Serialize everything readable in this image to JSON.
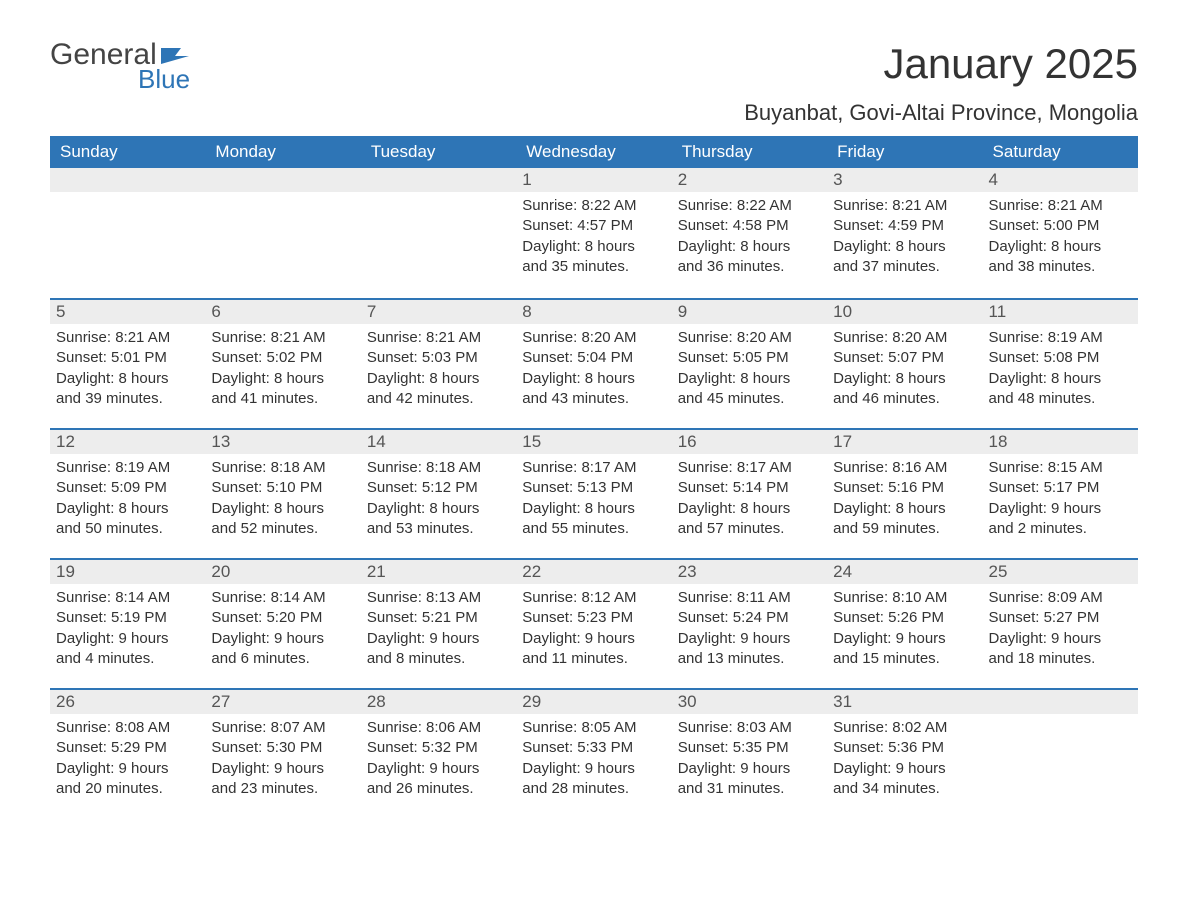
{
  "logo": {
    "top": "General",
    "bottom": "Blue"
  },
  "title": "January 2025",
  "location": "Buyanbat, Govi-Altai Province, Mongolia",
  "colors": {
    "header_bg": "#2e75b6",
    "header_text": "#ffffff",
    "daynum_bg": "#ededed",
    "text": "#333333",
    "logo_gray": "#444444",
    "logo_blue": "#2e75b6"
  },
  "day_names": [
    "Sunday",
    "Monday",
    "Tuesday",
    "Wednesday",
    "Thursday",
    "Friday",
    "Saturday"
  ],
  "weeks": [
    [
      {
        "empty": true
      },
      {
        "empty": true
      },
      {
        "empty": true
      },
      {
        "num": "1",
        "sunrise": "Sunrise: 8:22 AM",
        "sunset": "Sunset: 4:57 PM",
        "dl1": "Daylight: 8 hours",
        "dl2": "and 35 minutes."
      },
      {
        "num": "2",
        "sunrise": "Sunrise: 8:22 AM",
        "sunset": "Sunset: 4:58 PM",
        "dl1": "Daylight: 8 hours",
        "dl2": "and 36 minutes."
      },
      {
        "num": "3",
        "sunrise": "Sunrise: 8:21 AM",
        "sunset": "Sunset: 4:59 PM",
        "dl1": "Daylight: 8 hours",
        "dl2": "and 37 minutes."
      },
      {
        "num": "4",
        "sunrise": "Sunrise: 8:21 AM",
        "sunset": "Sunset: 5:00 PM",
        "dl1": "Daylight: 8 hours",
        "dl2": "and 38 minutes."
      }
    ],
    [
      {
        "num": "5",
        "sunrise": "Sunrise: 8:21 AM",
        "sunset": "Sunset: 5:01 PM",
        "dl1": "Daylight: 8 hours",
        "dl2": "and 39 minutes."
      },
      {
        "num": "6",
        "sunrise": "Sunrise: 8:21 AM",
        "sunset": "Sunset: 5:02 PM",
        "dl1": "Daylight: 8 hours",
        "dl2": "and 41 minutes."
      },
      {
        "num": "7",
        "sunrise": "Sunrise: 8:21 AM",
        "sunset": "Sunset: 5:03 PM",
        "dl1": "Daylight: 8 hours",
        "dl2": "and 42 minutes."
      },
      {
        "num": "8",
        "sunrise": "Sunrise: 8:20 AM",
        "sunset": "Sunset: 5:04 PM",
        "dl1": "Daylight: 8 hours",
        "dl2": "and 43 minutes."
      },
      {
        "num": "9",
        "sunrise": "Sunrise: 8:20 AM",
        "sunset": "Sunset: 5:05 PM",
        "dl1": "Daylight: 8 hours",
        "dl2": "and 45 minutes."
      },
      {
        "num": "10",
        "sunrise": "Sunrise: 8:20 AM",
        "sunset": "Sunset: 5:07 PM",
        "dl1": "Daylight: 8 hours",
        "dl2": "and 46 minutes."
      },
      {
        "num": "11",
        "sunrise": "Sunrise: 8:19 AM",
        "sunset": "Sunset: 5:08 PM",
        "dl1": "Daylight: 8 hours",
        "dl2": "and 48 minutes."
      }
    ],
    [
      {
        "num": "12",
        "sunrise": "Sunrise: 8:19 AM",
        "sunset": "Sunset: 5:09 PM",
        "dl1": "Daylight: 8 hours",
        "dl2": "and 50 minutes."
      },
      {
        "num": "13",
        "sunrise": "Sunrise: 8:18 AM",
        "sunset": "Sunset: 5:10 PM",
        "dl1": "Daylight: 8 hours",
        "dl2": "and 52 minutes."
      },
      {
        "num": "14",
        "sunrise": "Sunrise: 8:18 AM",
        "sunset": "Sunset: 5:12 PM",
        "dl1": "Daylight: 8 hours",
        "dl2": "and 53 minutes."
      },
      {
        "num": "15",
        "sunrise": "Sunrise: 8:17 AM",
        "sunset": "Sunset: 5:13 PM",
        "dl1": "Daylight: 8 hours",
        "dl2": "and 55 minutes."
      },
      {
        "num": "16",
        "sunrise": "Sunrise: 8:17 AM",
        "sunset": "Sunset: 5:14 PM",
        "dl1": "Daylight: 8 hours",
        "dl2": "and 57 minutes."
      },
      {
        "num": "17",
        "sunrise": "Sunrise: 8:16 AM",
        "sunset": "Sunset: 5:16 PM",
        "dl1": "Daylight: 8 hours",
        "dl2": "and 59 minutes."
      },
      {
        "num": "18",
        "sunrise": "Sunrise: 8:15 AM",
        "sunset": "Sunset: 5:17 PM",
        "dl1": "Daylight: 9 hours",
        "dl2": "and 2 minutes."
      }
    ],
    [
      {
        "num": "19",
        "sunrise": "Sunrise: 8:14 AM",
        "sunset": "Sunset: 5:19 PM",
        "dl1": "Daylight: 9 hours",
        "dl2": "and 4 minutes."
      },
      {
        "num": "20",
        "sunrise": "Sunrise: 8:14 AM",
        "sunset": "Sunset: 5:20 PM",
        "dl1": "Daylight: 9 hours",
        "dl2": "and 6 minutes."
      },
      {
        "num": "21",
        "sunrise": "Sunrise: 8:13 AM",
        "sunset": "Sunset: 5:21 PM",
        "dl1": "Daylight: 9 hours",
        "dl2": "and 8 minutes."
      },
      {
        "num": "22",
        "sunrise": "Sunrise: 8:12 AM",
        "sunset": "Sunset: 5:23 PM",
        "dl1": "Daylight: 9 hours",
        "dl2": "and 11 minutes."
      },
      {
        "num": "23",
        "sunrise": "Sunrise: 8:11 AM",
        "sunset": "Sunset: 5:24 PM",
        "dl1": "Daylight: 9 hours",
        "dl2": "and 13 minutes."
      },
      {
        "num": "24",
        "sunrise": "Sunrise: 8:10 AM",
        "sunset": "Sunset: 5:26 PM",
        "dl1": "Daylight: 9 hours",
        "dl2": "and 15 minutes."
      },
      {
        "num": "25",
        "sunrise": "Sunrise: 8:09 AM",
        "sunset": "Sunset: 5:27 PM",
        "dl1": "Daylight: 9 hours",
        "dl2": "and 18 minutes."
      }
    ],
    [
      {
        "num": "26",
        "sunrise": "Sunrise: 8:08 AM",
        "sunset": "Sunset: 5:29 PM",
        "dl1": "Daylight: 9 hours",
        "dl2": "and 20 minutes."
      },
      {
        "num": "27",
        "sunrise": "Sunrise: 8:07 AM",
        "sunset": "Sunset: 5:30 PM",
        "dl1": "Daylight: 9 hours",
        "dl2": "and 23 minutes."
      },
      {
        "num": "28",
        "sunrise": "Sunrise: 8:06 AM",
        "sunset": "Sunset: 5:32 PM",
        "dl1": "Daylight: 9 hours",
        "dl2": "and 26 minutes."
      },
      {
        "num": "29",
        "sunrise": "Sunrise: 8:05 AM",
        "sunset": "Sunset: 5:33 PM",
        "dl1": "Daylight: 9 hours",
        "dl2": "and 28 minutes."
      },
      {
        "num": "30",
        "sunrise": "Sunrise: 8:03 AM",
        "sunset": "Sunset: 5:35 PM",
        "dl1": "Daylight: 9 hours",
        "dl2": "and 31 minutes."
      },
      {
        "num": "31",
        "sunrise": "Sunrise: 8:02 AM",
        "sunset": "Sunset: 5:36 PM",
        "dl1": "Daylight: 9 hours",
        "dl2": "and 34 minutes."
      },
      {
        "empty": true
      }
    ]
  ]
}
